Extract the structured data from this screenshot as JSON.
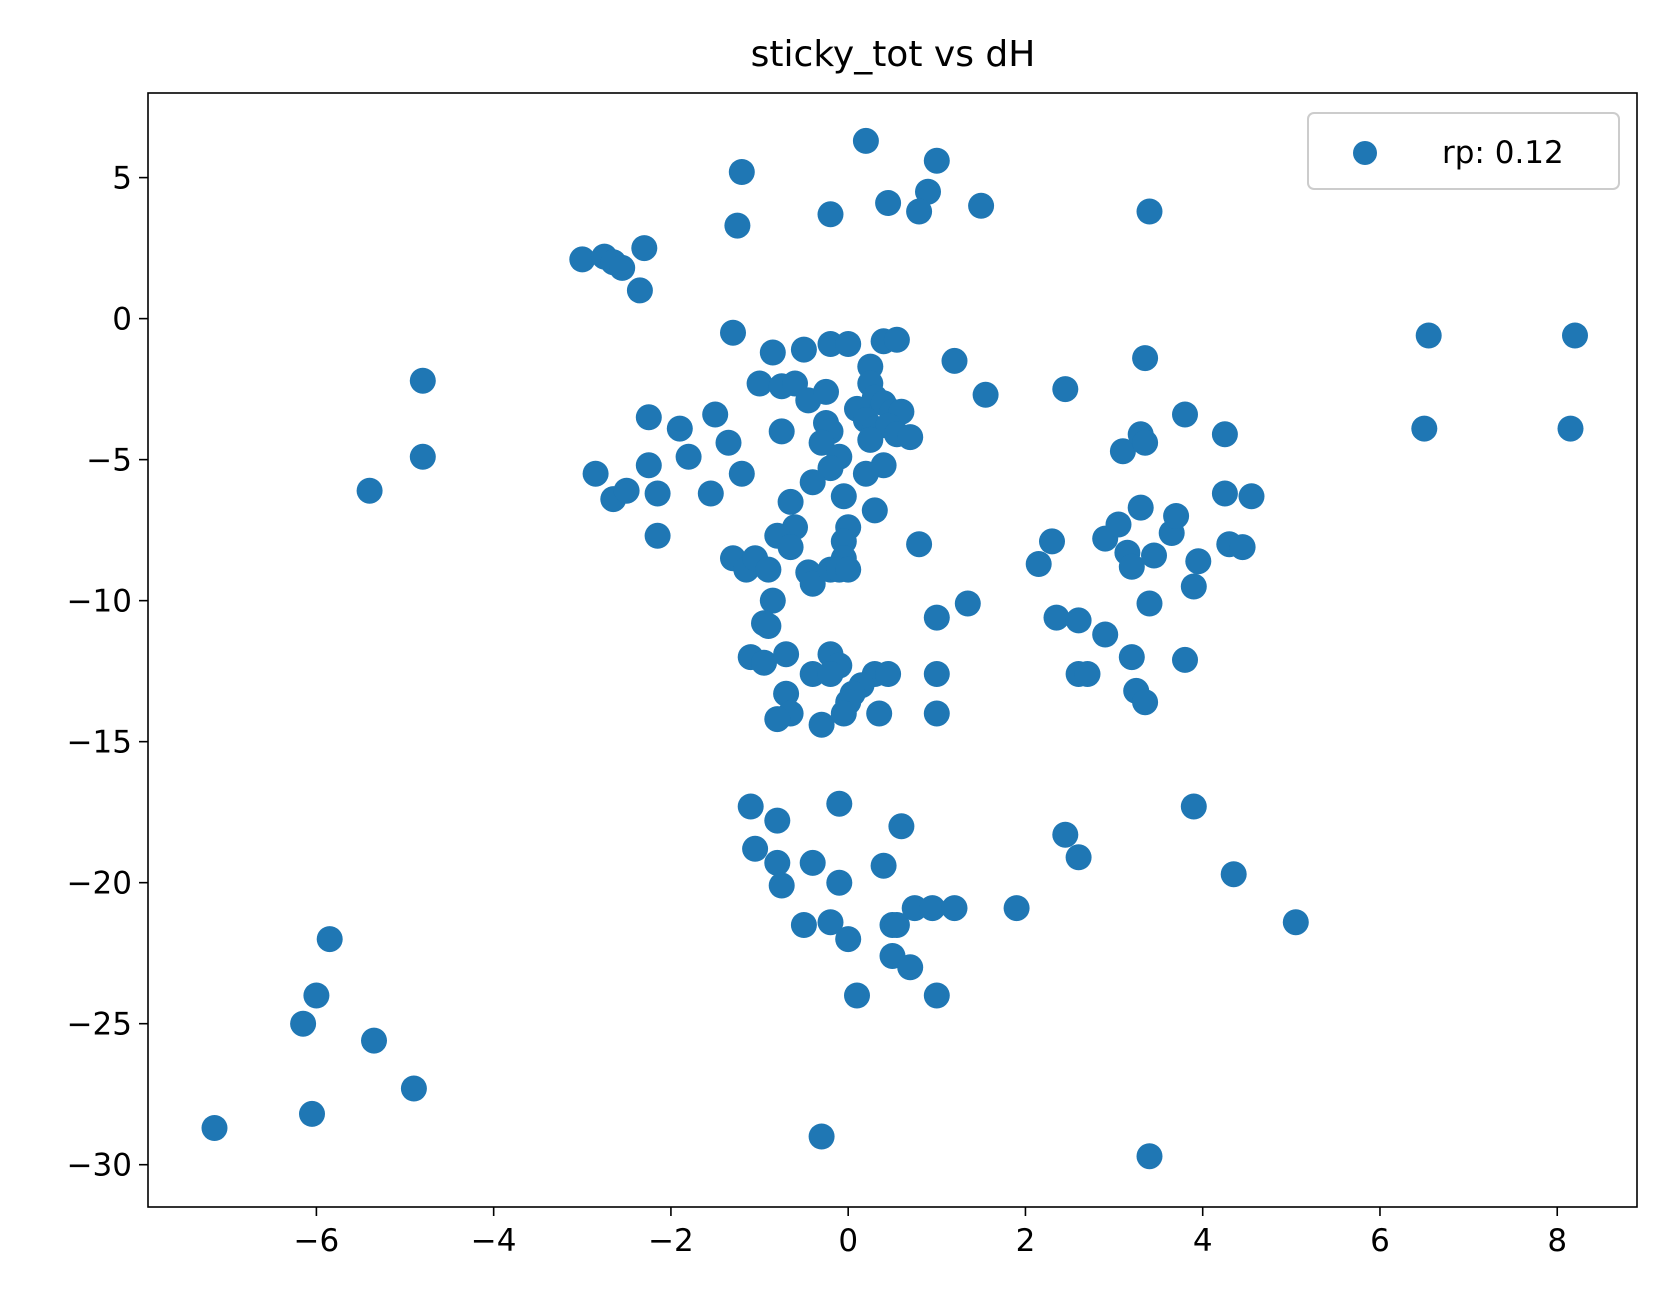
{
  "chart_data": {
    "type": "scatter",
    "title": "sticky_tot vs dH",
    "xlabel": "",
    "ylabel": "",
    "xlim": [
      -7.9,
      8.9
    ],
    "ylim": [
      -31.5,
      8.0
    ],
    "xticks": [
      -6,
      -4,
      -2,
      0,
      2,
      4,
      6,
      8
    ],
    "yticks": [
      5,
      0,
      -5,
      -10,
      -15,
      -20,
      -25,
      -30
    ],
    "xtick_labels": [
      "−6",
      "−4",
      "−2",
      "0",
      "2",
      "4",
      "6",
      "8"
    ],
    "ytick_labels": [
      "5",
      "0",
      "−5",
      "−10",
      "−15",
      "−20",
      "−25",
      "−30"
    ],
    "grid": false,
    "legend_position": "top-right",
    "color": "#1f77b4",
    "series": [
      {
        "name": "rp: 0.12",
        "points": [
          [
            0.2,
            6.3
          ],
          [
            1.0,
            5.6
          ],
          [
            -1.2,
            5.2
          ],
          [
            0.9,
            4.5
          ],
          [
            0.45,
            4.1
          ],
          [
            1.5,
            4.0
          ],
          [
            -0.2,
            3.7
          ],
          [
            0.8,
            3.8
          ],
          [
            3.4,
            3.8
          ],
          [
            -1.25,
            3.3
          ],
          [
            -3.0,
            2.1
          ],
          [
            -2.75,
            2.2
          ],
          [
            -2.65,
            2.0
          ],
          [
            -2.55,
            1.8
          ],
          [
            -2.3,
            2.5
          ],
          [
            -2.35,
            1.0
          ],
          [
            -1.3,
            -0.5
          ],
          [
            -0.85,
            -1.2
          ],
          [
            -0.5,
            -1.1
          ],
          [
            -0.2,
            -0.9
          ],
          [
            0.0,
            -0.9
          ],
          [
            0.4,
            -0.8
          ],
          [
            0.55,
            -0.75
          ],
          [
            1.2,
            -1.5
          ],
          [
            1.55,
            -2.7
          ],
          [
            2.45,
            -2.5
          ],
          [
            3.35,
            -1.4
          ],
          [
            6.55,
            -0.6
          ],
          [
            8.2,
            -0.6
          ],
          [
            -4.8,
            -2.2
          ],
          [
            -4.8,
            -4.9
          ],
          [
            -5.4,
            -6.1
          ],
          [
            -1.0,
            -2.3
          ],
          [
            -0.75,
            -2.4
          ],
          [
            -0.6,
            -2.3
          ],
          [
            -0.45,
            -2.9
          ],
          [
            -0.25,
            -2.6
          ],
          [
            0.25,
            -1.7
          ],
          [
            0.25,
            -2.3
          ],
          [
            0.3,
            -2.8
          ],
          [
            0.4,
            -3.0
          ],
          [
            0.1,
            -3.2
          ],
          [
            0.5,
            -3.3
          ],
          [
            0.6,
            -3.3
          ],
          [
            0.2,
            -3.6
          ],
          [
            0.3,
            -3.9
          ],
          [
            0.45,
            -3.8
          ],
          [
            0.55,
            -4.1
          ],
          [
            0.7,
            -4.2
          ],
          [
            0.25,
            -4.3
          ],
          [
            -0.25,
            -3.7
          ],
          [
            -0.2,
            -4.0
          ],
          [
            -0.3,
            -4.4
          ],
          [
            -0.1,
            -4.9
          ],
          [
            -0.2,
            -5.3
          ],
          [
            0.4,
            -5.2
          ],
          [
            0.2,
            -5.5
          ],
          [
            -0.4,
            -5.8
          ],
          [
            -0.05,
            -6.3
          ],
          [
            0.3,
            -6.8
          ],
          [
            -2.25,
            -3.5
          ],
          [
            -1.9,
            -3.9
          ],
          [
            -1.5,
            -3.4
          ],
          [
            -1.35,
            -4.4
          ],
          [
            -0.75,
            -4.0
          ],
          [
            -2.85,
            -5.5
          ],
          [
            -2.25,
            -5.2
          ],
          [
            -1.8,
            -4.9
          ],
          [
            -1.2,
            -5.5
          ],
          [
            -2.65,
            -6.4
          ],
          [
            -2.5,
            -6.1
          ],
          [
            -2.15,
            -6.2
          ],
          [
            -1.55,
            -6.2
          ],
          [
            -2.15,
            -7.7
          ],
          [
            -0.65,
            -6.5
          ],
          [
            -0.6,
            -7.4
          ],
          [
            -0.8,
            -7.7
          ],
          [
            0.0,
            -7.4
          ],
          [
            -0.05,
            -7.9
          ],
          [
            -0.65,
            -8.1
          ],
          [
            -1.3,
            -8.5
          ],
          [
            -1.15,
            -8.9
          ],
          [
            -1.05,
            -8.5
          ],
          [
            -0.9,
            -8.9
          ],
          [
            -0.45,
            -9.0
          ],
          [
            -0.4,
            -9.4
          ],
          [
            -0.2,
            -8.9
          ],
          [
            -0.05,
            -8.5
          ],
          [
            -0.1,
            -8.9
          ],
          [
            0.0,
            -8.9
          ],
          [
            0.8,
            -8.0
          ],
          [
            -0.85,
            -10.0
          ],
          [
            -0.95,
            -10.8
          ],
          [
            -0.9,
            -10.9
          ],
          [
            1.0,
            -10.6
          ],
          [
            1.35,
            -10.1
          ],
          [
            -1.1,
            -12.0
          ],
          [
            -0.95,
            -12.2
          ],
          [
            -0.7,
            -11.9
          ],
          [
            -0.4,
            -12.6
          ],
          [
            -0.2,
            -11.9
          ],
          [
            -0.1,
            -12.3
          ],
          [
            -0.2,
            -12.6
          ],
          [
            0.3,
            -12.6
          ],
          [
            0.45,
            -12.6
          ],
          [
            0.15,
            -13.0
          ],
          [
            0.05,
            -13.3
          ],
          [
            0.0,
            -13.6
          ],
          [
            1.0,
            -12.6
          ],
          [
            -0.7,
            -13.3
          ],
          [
            -0.65,
            -14.0
          ],
          [
            -0.8,
            -14.2
          ],
          [
            -0.3,
            -14.4
          ],
          [
            -0.05,
            -14.0
          ],
          [
            0.35,
            -14.0
          ],
          [
            1.0,
            -14.0
          ],
          [
            2.15,
            -8.7
          ],
          [
            2.3,
            -7.9
          ],
          [
            2.35,
            -10.6
          ],
          [
            2.6,
            -10.7
          ],
          [
            2.6,
            -12.6
          ],
          [
            2.7,
            -12.6
          ],
          [
            2.9,
            -11.2
          ],
          [
            2.9,
            -7.8
          ],
          [
            3.05,
            -7.3
          ],
          [
            3.1,
            -4.7
          ],
          [
            3.15,
            -8.3
          ],
          [
            3.2,
            -8.8
          ],
          [
            3.2,
            -12.0
          ],
          [
            3.25,
            -13.2
          ],
          [
            3.3,
            -4.1
          ],
          [
            3.3,
            -6.7
          ],
          [
            3.35,
            -13.6
          ],
          [
            3.35,
            -4.4
          ],
          [
            3.4,
            -10.1
          ],
          [
            3.45,
            -8.4
          ],
          [
            3.65,
            -7.6
          ],
          [
            3.7,
            -7.0
          ],
          [
            3.8,
            -3.4
          ],
          [
            3.8,
            -12.1
          ],
          [
            3.9,
            -9.5
          ],
          [
            3.95,
            -8.6
          ],
          [
            4.25,
            -4.1
          ],
          [
            4.25,
            -6.2
          ],
          [
            4.3,
            -8.0
          ],
          [
            4.45,
            -8.1
          ],
          [
            4.55,
            -6.3
          ],
          [
            6.5,
            -3.9
          ],
          [
            8.15,
            -3.9
          ],
          [
            -1.1,
            -17.3
          ],
          [
            -1.05,
            -18.8
          ],
          [
            -0.8,
            -17.8
          ],
          [
            -0.8,
            -19.3
          ],
          [
            -0.75,
            -20.1
          ],
          [
            -0.4,
            -19.3
          ],
          [
            -0.5,
            -21.5
          ],
          [
            -0.2,
            -21.4
          ],
          [
            -0.1,
            -17.2
          ],
          [
            -0.1,
            -20.0
          ],
          [
            0.0,
            -22.0
          ],
          [
            0.1,
            -24.0
          ],
          [
            0.4,
            -19.4
          ],
          [
            0.5,
            -21.5
          ],
          [
            0.55,
            -21.5
          ],
          [
            0.5,
            -22.6
          ],
          [
            0.6,
            -18.0
          ],
          [
            0.7,
            -23.0
          ],
          [
            0.75,
            -20.9
          ],
          [
            0.95,
            -20.9
          ],
          [
            1.0,
            -24.0
          ],
          [
            1.2,
            -20.9
          ],
          [
            1.9,
            -20.9
          ],
          [
            2.45,
            -18.3
          ],
          [
            2.6,
            -19.1
          ],
          [
            3.9,
            -17.3
          ],
          [
            4.35,
            -19.7
          ],
          [
            5.05,
            -21.4
          ],
          [
            -5.85,
            -22.0
          ],
          [
            -6.0,
            -24.0
          ],
          [
            -6.15,
            -25.0
          ],
          [
            -5.35,
            -25.6
          ],
          [
            -4.9,
            -27.3
          ],
          [
            -6.05,
            -28.2
          ],
          [
            -7.15,
            -28.7
          ],
          [
            -0.3,
            -29.0
          ],
          [
            3.4,
            -29.7
          ]
        ]
      }
    ]
  }
}
